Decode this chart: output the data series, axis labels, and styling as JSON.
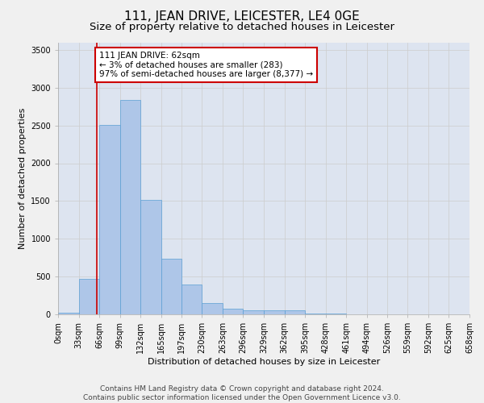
{
  "title": "111, JEAN DRIVE, LEICESTER, LE4 0GE",
  "subtitle": "Size of property relative to detached houses in Leicester",
  "xlabel": "Distribution of detached houses by size in Leicester",
  "ylabel": "Number of detached properties",
  "footer_line1": "Contains HM Land Registry data © Crown copyright and database right 2024.",
  "footer_line2": "Contains public sector information licensed under the Open Government Licence v3.0.",
  "annotation_title": "111 JEAN DRIVE: 62sqm",
  "annotation_line2": "← 3% of detached houses are smaller (283)",
  "annotation_line3": "97% of semi-detached houses are larger (8,377) →",
  "property_size_sqm": 62,
  "bin_edges": [
    0,
    33,
    66,
    99,
    132,
    165,
    197,
    230,
    263,
    296,
    329,
    362,
    395,
    428,
    461,
    494,
    526,
    559,
    592,
    625,
    658
  ],
  "bar_heights": [
    25,
    470,
    2510,
    2840,
    1520,
    740,
    390,
    145,
    80,
    55,
    55,
    50,
    10,
    10,
    5,
    5,
    5,
    0,
    0,
    0
  ],
  "bar_color": "#aec6e8",
  "bar_edge_color": "#5a9fd4",
  "vline_color": "#cc0000",
  "vline_x": 62,
  "annotation_box_color": "#cc0000",
  "annotation_bg_color": "#ffffff",
  "ylim": [
    0,
    3600
  ],
  "yticks": [
    0,
    500,
    1000,
    1500,
    2000,
    2500,
    3000,
    3500
  ],
  "grid_color": "#cccccc",
  "bg_color": "#dde4f0",
  "fig_bg_color": "#f0f0f0",
  "title_fontsize": 11,
  "subtitle_fontsize": 9.5,
  "axis_label_fontsize": 8,
  "tick_fontsize": 7,
  "footer_fontsize": 6.5,
  "annotation_fontsize": 7.5
}
